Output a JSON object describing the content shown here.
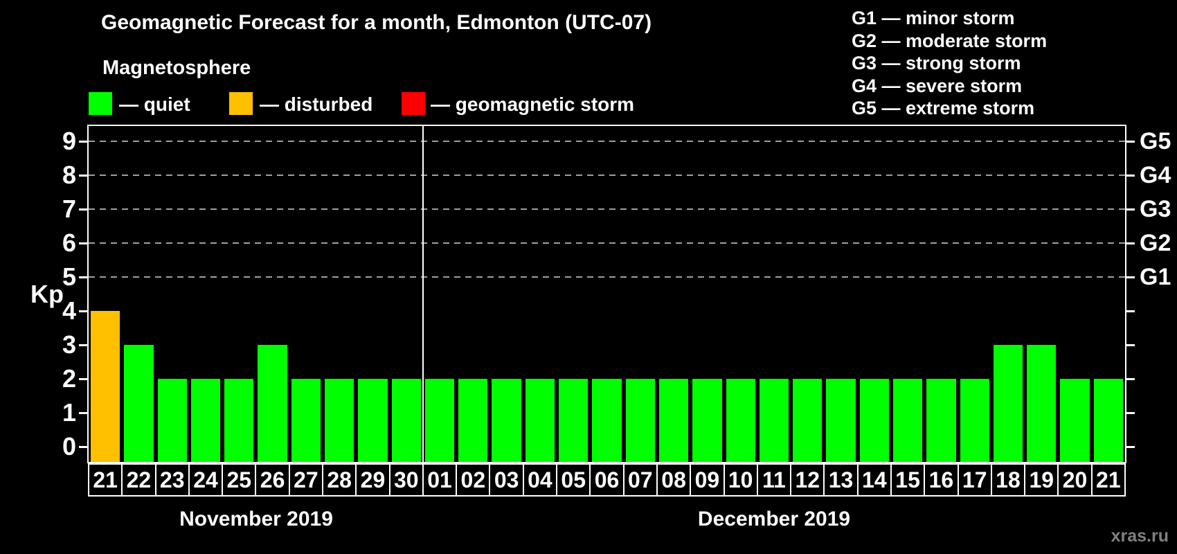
{
  "title": "Geomagnetic Forecast for a month, Edmonton (UTC-07)",
  "subtitle": "Magnetosphere",
  "legend": {
    "items": [
      {
        "key": "quiet",
        "label": "— quiet",
        "color": "#00ff00"
      },
      {
        "key": "disturbed",
        "label": "— disturbed",
        "color": "#ffc000"
      },
      {
        "key": "storm",
        "label": "— geomagnetic storm",
        "color": "#ff0000"
      }
    ]
  },
  "g_legend": {
    "items": [
      "G1 — minor storm",
      "G2 — moderate storm",
      "G3 — strong storm",
      "G4 — severe storm",
      "G5 — extreme storm"
    ]
  },
  "axis": {
    "kp_label": "Kp",
    "left_ticks": [
      0,
      1,
      2,
      3,
      4,
      5,
      6,
      7,
      8,
      9
    ],
    "right_g_labels": {
      "5": "G1",
      "6": "G2",
      "7": "G3",
      "8": "G4",
      "9": "G5"
    }
  },
  "watermark": "xras.ru",
  "colors": {
    "quiet": "#00ff00",
    "disturbed": "#ffc000",
    "storm": "#ff0000",
    "axis": "#ffffff",
    "grid": "#a0a0a0",
    "background": "#000000",
    "watermark": "#808080"
  },
  "chart_data": {
    "type": "bar",
    "title": "Geomagnetic Forecast for a month, Edmonton (UTC-07)",
    "xlabel": "",
    "ylabel": "Kp",
    "ylim": [
      0,
      9.5
    ],
    "grid": "dashed horizontal at Kp 5-9 only",
    "legend_position": "top",
    "x": [
      "21",
      "22",
      "23",
      "24",
      "25",
      "26",
      "27",
      "28",
      "29",
      "30",
      "01",
      "02",
      "03",
      "04",
      "05",
      "06",
      "07",
      "08",
      "09",
      "10",
      "11",
      "12",
      "13",
      "14",
      "15",
      "16",
      "17",
      "18",
      "19",
      "20",
      "21"
    ],
    "values": [
      4,
      3,
      2,
      2,
      2,
      3,
      2,
      2,
      2,
      2,
      2,
      2,
      2,
      2,
      2,
      2,
      2,
      2,
      2,
      2,
      2,
      2,
      2,
      2,
      2,
      2,
      2,
      3,
      3,
      2,
      2
    ],
    "statuses": [
      "disturbed",
      "quiet",
      "quiet",
      "quiet",
      "quiet",
      "quiet",
      "quiet",
      "quiet",
      "quiet",
      "quiet",
      "quiet",
      "quiet",
      "quiet",
      "quiet",
      "quiet",
      "quiet",
      "quiet",
      "quiet",
      "quiet",
      "quiet",
      "quiet",
      "quiet",
      "quiet",
      "quiet",
      "quiet",
      "quiet",
      "quiet",
      "quiet",
      "quiet",
      "quiet",
      "quiet"
    ],
    "gridlines": [
      5,
      6,
      7,
      8,
      9
    ],
    "months": [
      {
        "label": "November 2019",
        "days": 10
      },
      {
        "label": "December 2019",
        "days": 21
      }
    ]
  }
}
